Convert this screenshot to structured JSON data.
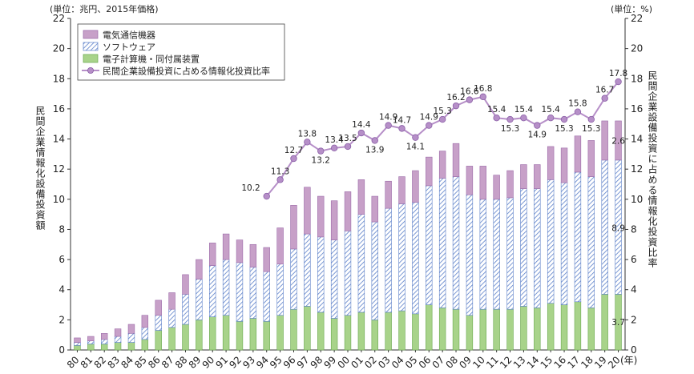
{
  "chart_data": {
    "type": "bar",
    "stacked": true,
    "unit_left": "(単位：兆円、2015年価格)",
    "unit_right": "(単位：%)",
    "ylabel_left": "民間企業情報化設備投資額",
    "ylabel_right": "民間企業設備投資に占める情報化投資比率",
    "x_suffix": "(年)",
    "ylim_left": [
      0,
      22
    ],
    "ylim_right": [
      0,
      22
    ],
    "yticks": [
      "0",
      "2",
      "4",
      "6",
      "8",
      "10",
      "12",
      "14",
      "16",
      "18",
      "20",
      "22"
    ],
    "categories": [
      "80",
      "81",
      "82",
      "83",
      "84",
      "85",
      "86",
      "87",
      "88",
      "89",
      "90",
      "91",
      "92",
      "93",
      "94",
      "95",
      "96",
      "97",
      "98",
      "99",
      "00",
      "01",
      "02",
      "03",
      "04",
      "05",
      "06",
      "07",
      "08",
      "09",
      "10",
      "11",
      "12",
      "13",
      "14",
      "15",
      "16",
      "17",
      "18",
      "19",
      "20"
    ],
    "series": [
      {
        "name": "電子計算機・同付属装置",
        "color": "#a8d38a",
        "values": [
          0.3,
          0.4,
          0.4,
          0.5,
          0.5,
          0.7,
          1.3,
          1.5,
          1.7,
          2.0,
          2.2,
          2.3,
          1.9,
          2.1,
          1.9,
          2.3,
          2.7,
          2.9,
          2.5,
          2.1,
          2.3,
          2.5,
          2.0,
          2.5,
          2.6,
          2.4,
          3.0,
          2.8,
          2.7,
          2.3,
          2.7,
          2.7,
          2.7,
          2.9,
          2.8,
          3.1,
          3.0,
          3.2,
          2.8,
          3.7,
          3.7
        ]
      },
      {
        "name": "ソフトウェア",
        "color": "#c9d8f0",
        "values": [
          0.2,
          0.2,
          0.3,
          0.4,
          0.6,
          0.8,
          1.0,
          1.2,
          2.0,
          2.7,
          3.4,
          3.7,
          3.9,
          3.4,
          3.3,
          3.4,
          4.0,
          4.8,
          5.0,
          5.2,
          5.6,
          6.5,
          6.5,
          6.9,
          7.1,
          7.4,
          7.9,
          8.6,
          8.8,
          8.0,
          7.3,
          7.3,
          7.4,
          7.8,
          7.9,
          8.2,
          8.1,
          8.6,
          8.7,
          8.9,
          8.9
        ]
      },
      {
        "name": "電気通信機器",
        "color": "#c7a0c8",
        "values": [
          0.3,
          0.3,
          0.4,
          0.5,
          0.6,
          0.8,
          1.0,
          1.1,
          1.3,
          1.3,
          1.5,
          1.7,
          1.5,
          1.5,
          1.6,
          2.4,
          2.9,
          3.1,
          2.7,
          2.6,
          2.6,
          2.3,
          1.7,
          1.8,
          1.8,
          2.1,
          1.9,
          1.8,
          2.2,
          1.9,
          2.2,
          1.6,
          1.8,
          1.6,
          1.6,
          2.2,
          2.3,
          2.4,
          2.4,
          2.6,
          2.6
        ]
      }
    ],
    "line": {
      "name": "民間企業設備投資に占める情報化投資比率",
      "color": "#b68fc8",
      "start_index": 14,
      "values": [
        10.2,
        11.3,
        12.7,
        13.8,
        13.2,
        13.4,
        13.5,
        14.4,
        13.9,
        14.9,
        14.7,
        14.1,
        14.9,
        15.3,
        16.2,
        16.6,
        16.8,
        15.4,
        15.3,
        15.4,
        14.9,
        15.4,
        15.3,
        15.8,
        15.3,
        16.7,
        17.8
      ],
      "labels": [
        "10.2",
        "11.3",
        "12.7",
        "13.8",
        "13.2",
        "13.4",
        "13.5",
        "14.4",
        "13.9",
        "14.9",
        "14.7",
        "14.1",
        "14.9",
        "15.3",
        "16.2",
        "16.6",
        "16.8",
        "15.4",
        "15.3",
        "15.4",
        "14.9",
        "15.4",
        "15.3",
        "15.8",
        "15.3",
        "16.7",
        "17.8"
      ]
    },
    "bar_annotations": [
      {
        "index": 40,
        "text": "2.6",
        "at": 13.9
      },
      {
        "index": 40,
        "text": "8.9",
        "at": 8.1
      },
      {
        "index": 40,
        "text": "3.7",
        "at": 1.85
      }
    ],
    "legend_position": "top-left",
    "grid": false
  }
}
